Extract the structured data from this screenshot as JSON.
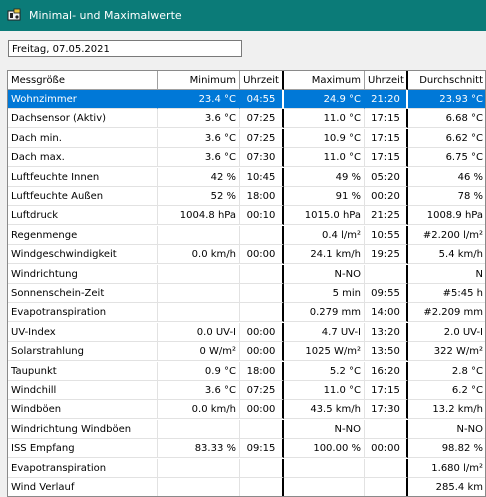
{
  "window": {
    "title": "Minimal- und Maximalwerte"
  },
  "date_field": {
    "value": "Freitag, 07.05.2021"
  },
  "table": {
    "headers": [
      "Messgröße",
      "Minimum",
      "Uhrzeit",
      "Maximum",
      "Uhrzeit",
      "Durchschnitt"
    ],
    "rows": [
      [
        "Wohnzimmer",
        "23.4 °C",
        "04:55",
        "24.9 °C",
        "21:20",
        "23.93 °C"
      ],
      [
        "Dachsensor (Aktiv)",
        "3.6 °C",
        "07:25",
        "11.0 °C",
        "17:15",
        "6.68 °C"
      ],
      [
        "Dach min.",
        "3.6 °C",
        "07:25",
        "10.9 °C",
        "17:15",
        "6.62 °C"
      ],
      [
        "Dach max.",
        "3.6 °C",
        "07:30",
        "11.0 °C",
        "17:15",
        "6.75 °C"
      ],
      [
        "Luftfeuchte Innen",
        "42 %",
        "10:45",
        "49 %",
        "05:20",
        "46 %"
      ],
      [
        "Luftfeuchte Außen",
        "52 %",
        "18:00",
        "91 %",
        "00:20",
        "78 %"
      ],
      [
        "Luftdruck",
        "1004.8 hPa",
        "00:10",
        "1015.0 hPa",
        "21:25",
        "1008.9 hPa"
      ],
      [
        "Regenmenge",
        "",
        "",
        "0.4 l/m²",
        "10:55",
        "#2.200 l/m²"
      ],
      [
        "Windgeschwindigkeit",
        "0.0 km/h",
        "00:00",
        "24.1 km/h",
        "19:25",
        "5.4 km/h"
      ],
      [
        "Windrichtung",
        "",
        "",
        "N-NO",
        "",
        "N"
      ],
      [
        "Sonnenschein-Zeit",
        "",
        "",
        "5 min",
        "09:55",
        "#5:45 h"
      ],
      [
        "Evapotranspiration",
        "",
        "",
        "0.279 mm",
        "14:00",
        "#2.209 mm"
      ],
      [
        "UV-Index",
        "0.0 UV-I",
        "00:00",
        "4.7 UV-I",
        "13:20",
        "2.0 UV-I"
      ],
      [
        "Solarstrahlung",
        "0 W/m²",
        "00:00",
        "1025 W/m²",
        "13:50",
        "322 W/m²"
      ],
      [
        "Taupunkt",
        "0.9 °C",
        "18:00",
        "5.2 °C",
        "16:20",
        "2.8 °C"
      ],
      [
        "Windchill",
        "3.6 °C",
        "07:25",
        "11.0 °C",
        "17:15",
        "6.2 °C"
      ],
      [
        "Windböen",
        "0.0 km/h",
        "00:00",
        "43.5 km/h",
        "17:30",
        "13.2 km/h"
      ],
      [
        "Windrichtung Windböen",
        "",
        "",
        "N-NO",
        "",
        "N-NO"
      ],
      [
        "ISS Empfang",
        "83.33 %",
        "09:15",
        "100.00 %",
        "00:00",
        "98.82 %"
      ],
      [
        "Evapotranspiration",
        "",
        "",
        "",
        "",
        "1.680 l/m²"
      ],
      [
        "Wind Verlauf",
        "",
        "",
        "",
        "",
        "285.4 km"
      ]
    ],
    "selected_row": 0
  }
}
